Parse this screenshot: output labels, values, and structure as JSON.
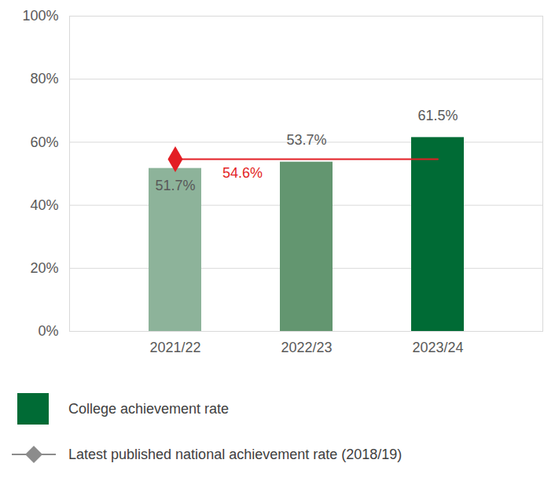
{
  "chart_data": {
    "type": "bar",
    "categories": [
      "2021/22",
      "2022/23",
      "2023/24"
    ],
    "series": [
      {
        "name": "College achievement rate",
        "type": "bar",
        "color": "#006b35",
        "colors": [
          "#8db39a",
          "#639670",
          "#006b35"
        ],
        "values": [
          51.7,
          53.7,
          61.5
        ],
        "value_labels": [
          "51.7%",
          "53.7%",
          "61.5%"
        ]
      },
      {
        "name": "Latest published national achievement rate (2018/19)",
        "type": "line",
        "color": "#e31e24",
        "marker": "diamond",
        "values": [
          54.6,
          54.6,
          54.6
        ],
        "value_labels": [
          "54.6%",
          null,
          null
        ]
      }
    ],
    "ylim": [
      0,
      100
    ],
    "yticks": [
      {
        "value": 0,
        "label": "0%"
      },
      {
        "value": 20,
        "label": "20%"
      },
      {
        "value": 40,
        "label": "40%"
      },
      {
        "value": 60,
        "label": "60%"
      },
      {
        "value": 80,
        "label": "80%"
      },
      {
        "value": 100,
        "label": "100%"
      }
    ],
    "grid": true,
    "data_labels": true,
    "legend": "bottom"
  }
}
